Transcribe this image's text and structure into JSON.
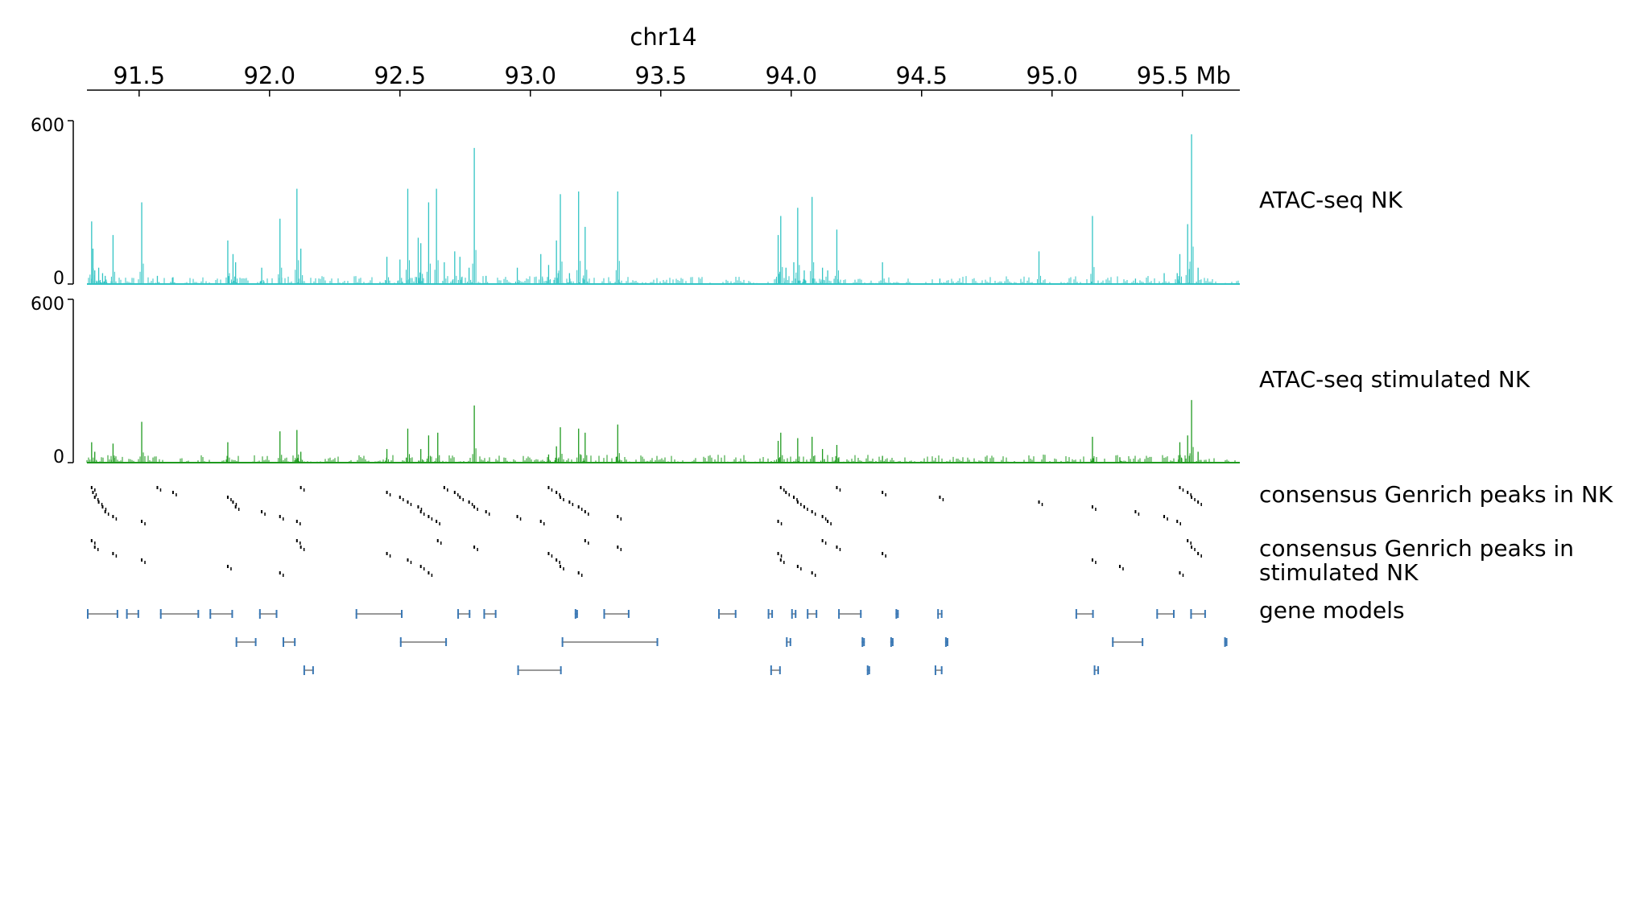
{
  "chart_data": {
    "type": "area",
    "title": "chr14",
    "x_unit": "Mb",
    "xlim": [
      91.3,
      95.72
    ],
    "x_ticks": [
      91.5,
      92.0,
      92.5,
      93.0,
      93.5,
      94.0,
      94.5,
      95.0,
      95.5
    ],
    "x_tick_labels": [
      "91.5",
      "92.0",
      "92.5",
      "93.0",
      "93.5",
      "94.0",
      "94.5",
      "95.0",
      "95.5 Mb"
    ],
    "tracks": [
      {
        "name": "ATAC-seq NK",
        "type": "signal",
        "color": "#33c4c4",
        "ylim": [
          0,
          600
        ],
        "y_tick_labels": [
          "600",
          "0"
        ],
        "peaks": [
          [
            91.318,
            230
          ],
          [
            91.323,
            130
          ],
          [
            91.33,
            50
          ],
          [
            91.345,
            60
          ],
          [
            91.36,
            40
          ],
          [
            91.37,
            30
          ],
          [
            91.4,
            180
          ],
          [
            91.51,
            300
          ],
          [
            91.57,
            30
          ],
          [
            91.63,
            25
          ],
          [
            91.84,
            160
          ],
          [
            91.86,
            110
          ],
          [
            91.87,
            80
          ],
          [
            91.97,
            60
          ],
          [
            92.04,
            240
          ],
          [
            92.105,
            350
          ],
          [
            92.12,
            130
          ],
          [
            92.45,
            100
          ],
          [
            92.5,
            90
          ],
          [
            92.53,
            350
          ],
          [
            92.57,
            170
          ],
          [
            92.58,
            150
          ],
          [
            92.61,
            300
          ],
          [
            92.64,
            350
          ],
          [
            92.67,
            80
          ],
          [
            92.71,
            120
          ],
          [
            92.73,
            100
          ],
          [
            92.765,
            60
          ],
          [
            92.785,
            500
          ],
          [
            92.83,
            30
          ],
          [
            92.95,
            60
          ],
          [
            93.04,
            110
          ],
          [
            93.07,
            70
          ],
          [
            93.1,
            160
          ],
          [
            93.115,
            330
          ],
          [
            93.15,
            40
          ],
          [
            93.185,
            340
          ],
          [
            93.21,
            210
          ],
          [
            93.335,
            340
          ],
          [
            93.95,
            180
          ],
          [
            93.96,
            250
          ],
          [
            93.98,
            60
          ],
          [
            94.01,
            80
          ],
          [
            94.025,
            280
          ],
          [
            94.05,
            50
          ],
          [
            94.08,
            320
          ],
          [
            94.12,
            60
          ],
          [
            94.14,
            50
          ],
          [
            94.175,
            200
          ],
          [
            94.35,
            80
          ],
          [
            94.57,
            20
          ],
          [
            94.95,
            120
          ],
          [
            95.155,
            250
          ],
          [
            95.32,
            20
          ],
          [
            95.43,
            40
          ],
          [
            95.48,
            40
          ],
          [
            95.49,
            110
          ],
          [
            95.52,
            220
          ],
          [
            95.535,
            550
          ],
          [
            95.56,
            60
          ]
        ]
      },
      {
        "name": "ATAC-seq stimulated NK",
        "type": "signal",
        "color": "#1f9a1f",
        "ylim": [
          0,
          600
        ],
        "y_tick_labels": [
          "600",
          "0"
        ],
        "peaks": [
          [
            91.318,
            75
          ],
          [
            91.33,
            40
          ],
          [
            91.4,
            70
          ],
          [
            91.51,
            150
          ],
          [
            91.84,
            75
          ],
          [
            92.04,
            115
          ],
          [
            92.105,
            120
          ],
          [
            92.12,
            40
          ],
          [
            92.45,
            50
          ],
          [
            92.53,
            125
          ],
          [
            92.58,
            50
          ],
          [
            92.61,
            100
          ],
          [
            92.645,
            110
          ],
          [
            92.785,
            210
          ],
          [
            93.07,
            30
          ],
          [
            93.1,
            60
          ],
          [
            93.115,
            130
          ],
          [
            93.185,
            125
          ],
          [
            93.21,
            110
          ],
          [
            93.335,
            140
          ],
          [
            93.95,
            80
          ],
          [
            93.96,
            110
          ],
          [
            94.025,
            90
          ],
          [
            94.08,
            95
          ],
          [
            94.12,
            50
          ],
          [
            94.175,
            65
          ],
          [
            94.35,
            25
          ],
          [
            95.155,
            95
          ],
          [
            95.26,
            20
          ],
          [
            95.49,
            75
          ],
          [
            95.52,
            100
          ],
          [
            95.535,
            230
          ],
          [
            95.56,
            40
          ]
        ]
      },
      {
        "name": "consensus Genrich peaks in NK",
        "type": "intervals",
        "color": "#000000"
      },
      {
        "name": "consensus Genrich peaks in stimulated NK",
        "type": "intervals",
        "color": "#000000"
      },
      {
        "name": "gene models",
        "type": "genes",
        "color": "#3a78b5"
      }
    ]
  }
}
